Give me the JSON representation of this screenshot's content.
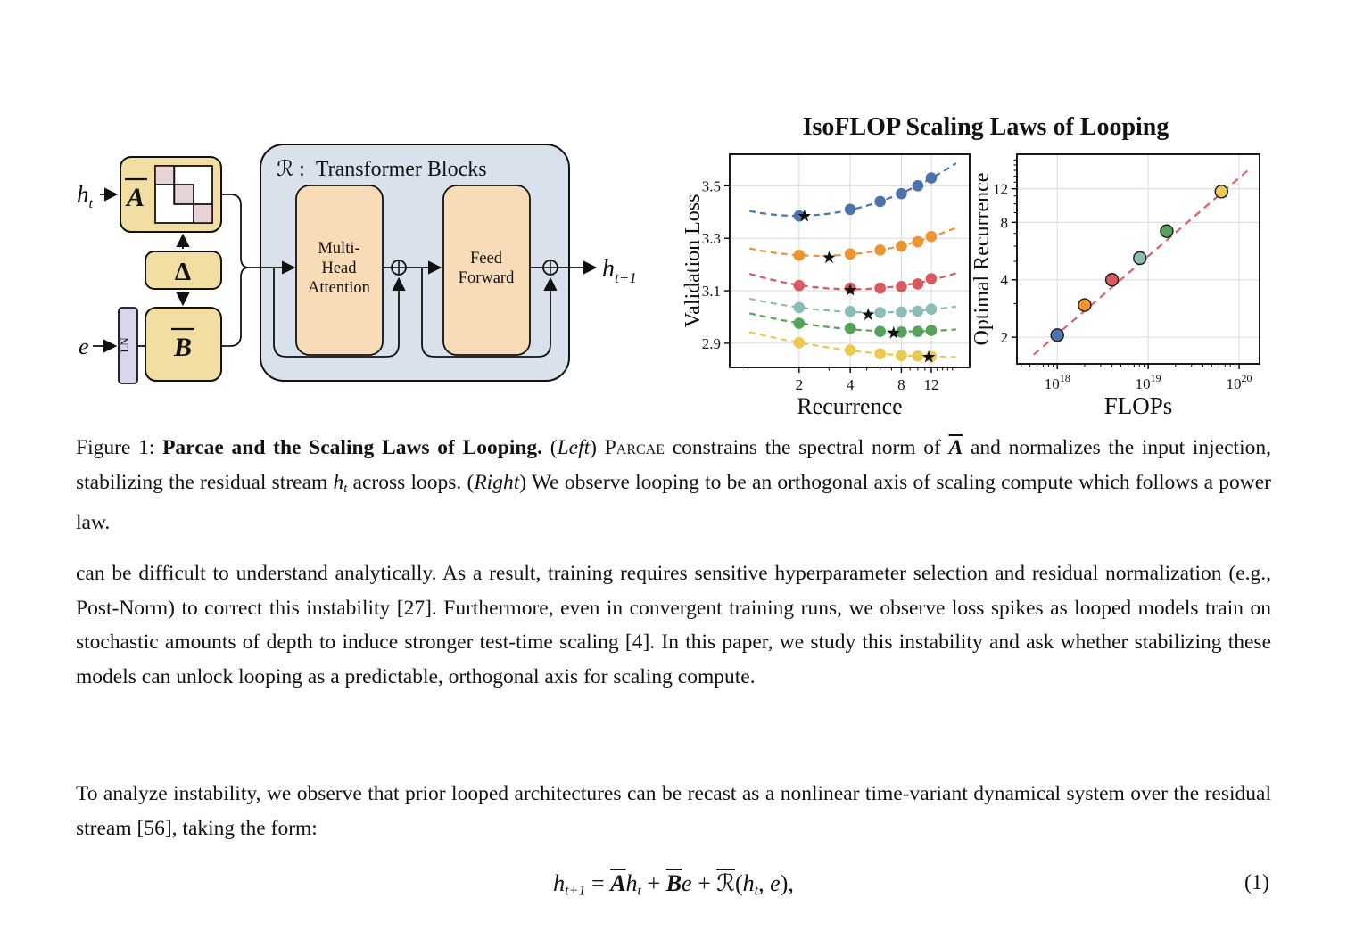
{
  "diagram": {
    "input_h": "h",
    "input_h_sub": "t",
    "e_label": "e",
    "A_label": "A",
    "delta_label": "Δ",
    "B_label": "B",
    "ln_label": "LN",
    "container_prefix": "ℛ :",
    "container_title": "Transformer Blocks",
    "mha_lines": [
      "Multi-",
      "Head",
      "Attention"
    ],
    "ff_lines": [
      "Feed",
      "Forward"
    ],
    "output_h": "h",
    "output_h_sub": "t+1",
    "colors": {
      "block_tan": "#F2DEA2",
      "block_peach": "#F8DCB8",
      "container_blue": "#D9E1EC",
      "ln_lavender": "#DAD5EC",
      "matrix_pink": "#E7D3D6"
    }
  },
  "chart_data": [
    {
      "type": "scatter",
      "title": "IsoFLOP Scaling Laws of Looping",
      "xlabel": "Recurrence",
      "ylabel": "Validation Loss",
      "xscale": "log",
      "yscale": "linear",
      "xlim": [
        0.78,
        20.2
      ],
      "ylim": [
        2.808,
        3.62
      ],
      "xticks": [
        2,
        4,
        8,
        12
      ],
      "x_minor_ticks": [
        1,
        3,
        5,
        6,
        7,
        9,
        10,
        11,
        13,
        14,
        15,
        16
      ],
      "yticks": [
        2.9,
        3.1,
        3.3,
        3.5
      ],
      "grid": true,
      "legend": "none",
      "x": [
        2,
        4,
        6,
        8,
        10,
        12
      ],
      "series": [
        {
          "name": "isoflop-curve-1",
          "color": "#4D72AE",
          "values": [
            3.385,
            3.41,
            3.44,
            3.47,
            3.5,
            3.53
          ],
          "star": [
            2.15,
            3.386
          ]
        },
        {
          "name": "isoflop-curve-2",
          "color": "#EC9434",
          "values": [
            3.235,
            3.24,
            3.255,
            3.27,
            3.287,
            3.307
          ],
          "star": [
            3.0,
            3.227
          ]
        },
        {
          "name": "isoflop-curve-3",
          "color": "#D85A5E",
          "values": [
            3.12,
            3.11,
            3.11,
            3.116,
            3.126,
            3.146
          ],
          "star": [
            4.0,
            3.103
          ]
        },
        {
          "name": "isoflop-curve-4",
          "color": "#8BBDB7",
          "values": [
            3.036,
            3.021,
            3.017,
            3.019,
            3.022,
            3.03
          ],
          "star": [
            5.1,
            3.011
          ]
        },
        {
          "name": "isoflop-curve-5",
          "color": "#57A25B",
          "values": [
            2.976,
            2.957,
            2.945,
            2.943,
            2.945,
            2.949
          ],
          "star": [
            7.2,
            2.941
          ]
        },
        {
          "name": "isoflop-curve-6",
          "color": "#EBC850",
          "values": [
            2.902,
            2.874,
            2.86,
            2.853,
            2.851,
            2.85
          ],
          "star": [
            11.6,
            2.848
          ]
        }
      ],
      "curve_style": "dashed",
      "star_marker_color": "#000000"
    },
    {
      "type": "scatter",
      "xlabel": "FLOPs",
      "ylabel": "Optimal Recurrence",
      "xscale": "log",
      "yscale": "log",
      "xlim": [
        3.6e+17,
        1.68e+20
      ],
      "ylim": [
        1.45,
        18.2
      ],
      "xticks": [
        1e+18,
        1e+19,
        1e+20
      ],
      "xtick_base": "10",
      "xtick_exponents": [
        "18",
        "19",
        "20"
      ],
      "yticks": [
        2,
        4,
        8,
        12
      ],
      "y_minor_ticks": [
        3,
        5,
        6,
        7,
        9,
        10,
        11,
        13,
        14,
        15,
        16,
        17
      ],
      "grid": true,
      "points": [
        {
          "x": 1e+18,
          "y": 2.05,
          "color": "#4D72AE"
        },
        {
          "x": 2e+18,
          "y": 2.95,
          "color": "#EC9434"
        },
        {
          "x": 4e+18,
          "y": 4.0,
          "color": "#D85A5E"
        },
        {
          "x": 8.1e+18,
          "y": 5.2,
          "color": "#8BBDB7"
        },
        {
          "x": 1.6e+19,
          "y": 7.2,
          "color": "#57A25B"
        },
        {
          "x": 6.4e+19,
          "y": 11.6,
          "color": "#EBC850"
        }
      ],
      "fit": {
        "type": "powerlaw",
        "coef": 2.07,
        "exp": 0.41,
        "x_range": [
          5.5e+17,
          1.25e+20
        ],
        "color": "#E06161",
        "style": "dashed"
      }
    }
  ],
  "caption": {
    "prefix": "Figure 1: ",
    "bold_title": "Parcae and the Scaling Laws of Looping.",
    "open_left": " (",
    "left_word": "Left",
    "close_left": ") ",
    "parcae_smallcaps": "Parcae",
    "mid1": " constrains the spectral norm of ",
    "A_math": "A",
    "mid2": " and normalizes the input injection, stabilizing the residual stream ",
    "h_math": "h",
    "h_sub": "t",
    "mid3": " across loops. (",
    "right_word": "Right",
    "tail": ") We observe looping to be an orthogonal axis of scaling compute which follows a power law."
  },
  "body": {
    "para1": "can be difficult to understand analytically. As a result, training requires sensitive hyperparameter selection and residual normalization (e.g., Post-Norm) to correct this instability [27]. Furthermore, even in convergent training runs, we observe loss spikes as looped models train on stochastic amounts of depth to induce stronger test-time scaling [4]. In this paper, we study this instability and ask whether stabilizing these models can unlock looping as a predictable, orthogonal axis for scaling compute.",
    "para2": "To analyze instability, we observe that prior looped architectures can be recast as a nonlinear time-variant dynamical system over the residual stream [56], taking the form:"
  },
  "equation": {
    "h1": "h",
    "sub1": "t+1",
    "eq": " = ",
    "A": "A",
    "h2": "h",
    "sub2": "t",
    "plus1": " + ",
    "B": "B",
    "e1": "e",
    "plus2": " + ",
    "R": "ℛ",
    "open": "(",
    "h3": "h",
    "sub3": "t",
    "comma": ", ",
    "e2": "e",
    "close": "),",
    "number": "(1)"
  }
}
